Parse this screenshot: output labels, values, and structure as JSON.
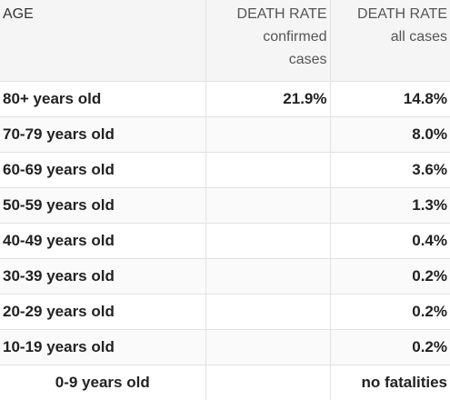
{
  "header": {
    "age": "AGE",
    "confirmed": {
      "title": "DEATH RATE",
      "sub1": "confirmed",
      "sub2": "cases"
    },
    "all": {
      "title": "DEATH RATE",
      "sub1": "all cases"
    }
  },
  "rows": [
    {
      "age": "80+ years old",
      "confirmed": "21.9%",
      "all": "14.8%"
    },
    {
      "age": "70-79 years old",
      "confirmed": "",
      "all": "8.0%"
    },
    {
      "age": "60-69 years old",
      "confirmed": "",
      "all": "3.6%"
    },
    {
      "age": "50-59 years old",
      "confirmed": "",
      "all": "1.3%"
    },
    {
      "age": "40-49 years old",
      "confirmed": "",
      "all": "0.4%"
    },
    {
      "age": "30-39 years old",
      "confirmed": "",
      "all": "0.2%"
    },
    {
      "age": "20-29 years old",
      "confirmed": "",
      "all": "0.2%"
    },
    {
      "age": "10-19 years old",
      "confirmed": "",
      "all": "0.2%"
    },
    {
      "age": "0-9 years old",
      "confirmed": "",
      "all": "no fatalities"
    }
  ]
}
